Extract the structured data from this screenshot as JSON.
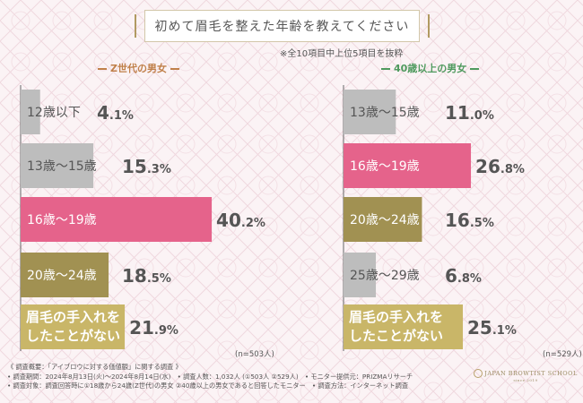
{
  "header": {
    "title": "初めて眉毛を整えた年齢を教えてください",
    "note": "※全10項目中上位5項目を抜粋"
  },
  "groups": [
    {
      "title": "Z世代の男女",
      "n_label": "(n=503人)"
    },
    {
      "title": "40歳以上の男女",
      "n_label": "(n=529人)"
    }
  ],
  "chart_data": [
    {
      "type": "bar",
      "title": "Z世代の男女",
      "categories": [
        "12歳以下",
        "13歳〜15歳",
        "16歳〜19歳",
        "20歳〜24歳",
        "眉毛の手入れをしたことがない"
      ],
      "values": [
        4.1,
        15.3,
        40.2,
        18.5,
        21.9
      ],
      "value_labels": [
        [
          "4",
          ".1",
          "%"
        ],
        [
          "15",
          ".3",
          "%"
        ],
        [
          "40",
          ".2",
          "%"
        ],
        [
          "18",
          ".5",
          "%"
        ],
        [
          "21",
          ".9",
          "%"
        ]
      ],
      "colors": [
        "#bdbdbd",
        "#bdbdbd",
        "#e5638b",
        "#a19152",
        "#c9b668"
      ]
    },
    {
      "type": "bar",
      "title": "40歳以上の男女",
      "categories": [
        "13歳〜15歳",
        "16歳〜19歳",
        "20歳〜24歳",
        "25歳〜29歳",
        "眉毛の手入れをしたことがない"
      ],
      "values": [
        11.0,
        26.8,
        16.5,
        6.8,
        25.1
      ],
      "value_labels": [
        [
          "11",
          ".0",
          "%"
        ],
        [
          "26",
          ".8",
          "%"
        ],
        [
          "16",
          ".5",
          "%"
        ],
        [
          "6",
          ".8",
          "%"
        ],
        [
          "25",
          ".1",
          "%"
        ]
      ],
      "colors": [
        "#bdbdbd",
        "#e5638b",
        "#a19152",
        "#bdbdbd",
        "#c9b668"
      ]
    }
  ],
  "footer": {
    "line1": "《 調査概要：「アイブロウに対する価値観」に関する調査 》",
    "line2": "• 調査期間：2024年8月13日(火)〜2024年8月14日(水)　• 調査人数：1,032人 (①503人 ②529人)　• モニター提供元：PRIZMAリサーチ",
    "line3": "• 調査対象：調査回答時に①18歳から24歳(Z世代)の男女 ②40歳以上の男女であると回答したモニター　• 調査方法：インターネット調査"
  },
  "logo": {
    "name": "JAPAN BROWTIST SCHOOL",
    "sub": "since 2019"
  },
  "colors": {
    "gray": "#bdbdbd",
    "pink": "#e5638b",
    "olive": "#a19152",
    "gold": "#c9b668",
    "group1_title": "#c0804a",
    "group2_title": "#4f9a5e"
  }
}
